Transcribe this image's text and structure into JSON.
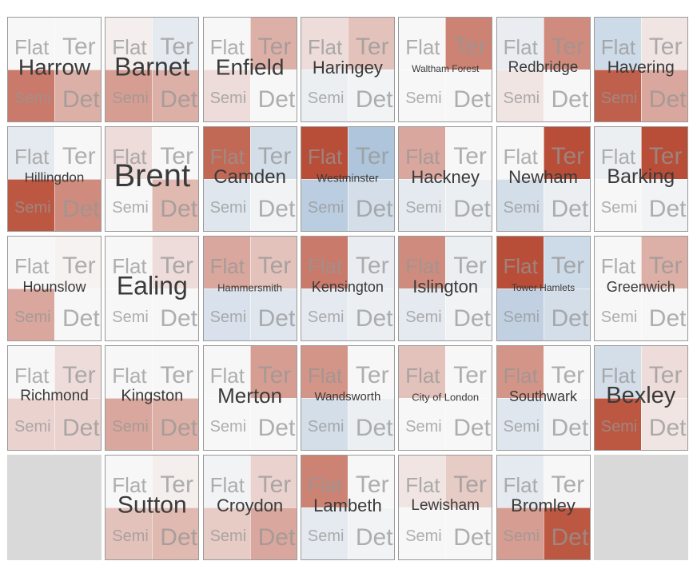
{
  "chart_data": {
    "type": "heatmap",
    "layout": "geographic tile grid of London boroughs, each tile split into four dwelling-type quadrants",
    "quadrant_labels": [
      "Flat",
      "Ter",
      "Semi",
      "Det"
    ],
    "color_scale": {
      "low": "#7fa3c9",
      "mid": "#f7f7f7",
      "high": "#b5452e"
    },
    "grid_cols": 7,
    "grid_rows": 5,
    "boroughs": [
      {
        "name": "Harrow",
        "row": 0,
        "col": 0,
        "size": 28,
        "values": [
          0,
          0,
          0.7,
          0.4
        ]
      },
      {
        "name": "Barnet",
        "row": 0,
        "col": 1,
        "size": 32,
        "values": [
          0.05,
          -0.15,
          0.5,
          0.4
        ]
      },
      {
        "name": "Enfield",
        "row": 0,
        "col": 2,
        "size": 28,
        "values": [
          0,
          0.4,
          0.15,
          0
        ]
      },
      {
        "name": "Haringey",
        "row": 0,
        "col": 3,
        "size": 22,
        "values": [
          0.15,
          0.3,
          -0.1,
          -0.05
        ]
      },
      {
        "name": "Waltham Forest",
        "row": 0,
        "col": 4,
        "size": 12,
        "values": [
          0,
          0.65,
          0,
          0
        ]
      },
      {
        "name": "Redbridge",
        "row": 0,
        "col": 5,
        "size": 19,
        "values": [
          -0.12,
          0.6,
          0.1,
          0
        ]
      },
      {
        "name": "Havering",
        "row": 0,
        "col": 6,
        "size": 21,
        "values": [
          -0.35,
          0.1,
          0.85,
          0.45
        ]
      },
      {
        "name": "Hillingdon",
        "row": 1,
        "col": 0,
        "size": 17,
        "values": [
          -0.15,
          0,
          0.9,
          0.6
        ]
      },
      {
        "name": "Brent",
        "row": 1,
        "col": 1,
        "size": 40,
        "values": [
          0.15,
          0,
          0,
          0.35
        ]
      },
      {
        "name": "Camden",
        "row": 1,
        "col": 2,
        "size": 24,
        "values": [
          0.8,
          -0.3,
          -0.2,
          -0.05
        ]
      },
      {
        "name": "Westminster",
        "row": 1,
        "col": 3,
        "size": 14,
        "values": [
          0.95,
          -0.6,
          -0.5,
          -0.3
        ]
      },
      {
        "name": "Hackney",
        "row": 1,
        "col": 4,
        "size": 22,
        "values": [
          0.45,
          0,
          -0.15,
          -0.1
        ]
      },
      {
        "name": "Newham",
        "row": 1,
        "col": 5,
        "size": 22,
        "values": [
          0,
          0.95,
          -0.3,
          -0.1
        ]
      },
      {
        "name": "Barking",
        "row": 1,
        "col": 6,
        "size": 25,
        "values": [
          -0.1,
          0.95,
          0,
          -0.05
        ]
      },
      {
        "name": "Hounslow",
        "row": 2,
        "col": 0,
        "size": 18,
        "values": [
          0,
          0.03,
          0.45,
          0
        ]
      },
      {
        "name": "Ealing",
        "row": 2,
        "col": 1,
        "size": 32,
        "values": [
          0,
          0.15,
          0,
          0
        ]
      },
      {
        "name": "Hammersmith",
        "row": 2,
        "col": 2,
        "size": 13,
        "values": [
          0.45,
          0.3,
          -0.25,
          -0.2
        ]
      },
      {
        "name": "Kensington",
        "row": 2,
        "col": 3,
        "size": 18,
        "values": [
          0.7,
          -0.12,
          -0.15,
          -0.1
        ]
      },
      {
        "name": "Islington",
        "row": 2,
        "col": 4,
        "size": 22,
        "values": [
          0.6,
          -0.1,
          -0.15,
          -0.05
        ]
      },
      {
        "name": "Tower Hamlets",
        "row": 2,
        "col": 5,
        "size": 12,
        "values": [
          0.95,
          -0.35,
          -0.45,
          -0.3
        ]
      },
      {
        "name": "Greenwich",
        "row": 2,
        "col": 6,
        "size": 18,
        "values": [
          0,
          0.4,
          0,
          0
        ]
      },
      {
        "name": "Richmond",
        "row": 3,
        "col": 0,
        "size": 19,
        "values": [
          0,
          0.15,
          0.2,
          0.2
        ]
      },
      {
        "name": "Kingston",
        "row": 3,
        "col": 1,
        "size": 20,
        "values": [
          0,
          0,
          0.45,
          0.4
        ]
      },
      {
        "name": "Merton",
        "row": 3,
        "col": 2,
        "size": 26,
        "values": [
          0,
          0.5,
          0,
          0
        ]
      },
      {
        "name": "Wandsworth",
        "row": 3,
        "col": 3,
        "size": 15,
        "values": [
          0.55,
          0,
          -0.3,
          -0.1
        ]
      },
      {
        "name": "City of London",
        "row": 3,
        "col": 4,
        "size": 13,
        "values": [
          0.3,
          0,
          0,
          0
        ]
      },
      {
        "name": "Southwark",
        "row": 3,
        "col": 5,
        "size": 18,
        "values": [
          0.55,
          0,
          -0.2,
          -0.05
        ]
      },
      {
        "name": "Bexley",
        "row": 3,
        "col": 6,
        "size": 29,
        "values": [
          -0.3,
          0.15,
          0.9,
          0.1
        ]
      },
      {
        "name": "Sutton",
        "row": 4,
        "col": 1,
        "size": 30,
        "values": [
          0,
          0.05,
          0.3,
          0.35
        ]
      },
      {
        "name": "Croydon",
        "row": 4,
        "col": 2,
        "size": 22,
        "values": [
          -0.05,
          0.2,
          0.25,
          0.45
        ]
      },
      {
        "name": "Lambeth",
        "row": 4,
        "col": 3,
        "size": 22,
        "values": [
          0.65,
          0,
          -0.15,
          -0.05
        ]
      },
      {
        "name": "Lewisham",
        "row": 4,
        "col": 4,
        "size": 19,
        "values": [
          0.1,
          0.25,
          0,
          0
        ]
      },
      {
        "name": "Bromley",
        "row": 4,
        "col": 5,
        "size": 22,
        "values": [
          -0.15,
          0,
          0.5,
          0.9
        ]
      }
    ],
    "empty_cells": [
      {
        "row": 4,
        "col": 0
      },
      {
        "row": 4,
        "col": 6
      }
    ]
  }
}
